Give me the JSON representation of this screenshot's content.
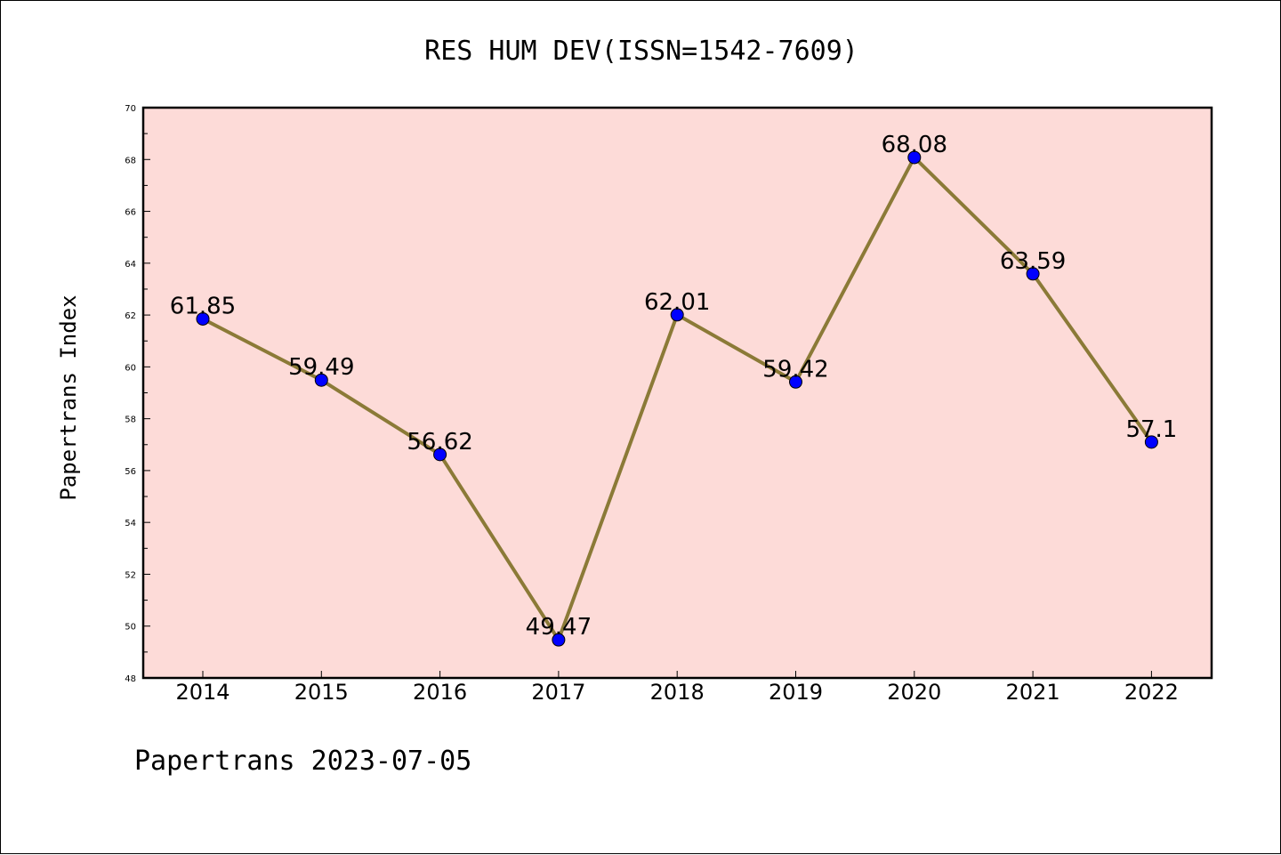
{
  "chart_data": {
    "type": "line",
    "title": "RES HUM DEV(ISSN=1542-7609)",
    "ylabel": "Papertrans Index",
    "xlabel": "",
    "categories": [
      "2014",
      "2015",
      "2016",
      "2017",
      "2018",
      "2019",
      "2020",
      "2021",
      "2022"
    ],
    "values": [
      61.85,
      59.49,
      56.62,
      49.47,
      62.01,
      59.42,
      68.08,
      63.59,
      57.1
    ],
    "data_labels": [
      "61.85",
      "59.49",
      "56.62",
      "49.47",
      "62.01",
      "59.42",
      "68.08",
      "63.59",
      "57.1"
    ],
    "ylim": [
      48,
      70
    ],
    "yticks": [
      48,
      50,
      52,
      54,
      56,
      58,
      60,
      62,
      64,
      66,
      68,
      70
    ],
    "grid": false,
    "colors": {
      "line": "#8b7a37",
      "marker": "#0000ff",
      "plot_background": "#fddbd8"
    }
  },
  "footer": "Papertrans 2023-07-05"
}
